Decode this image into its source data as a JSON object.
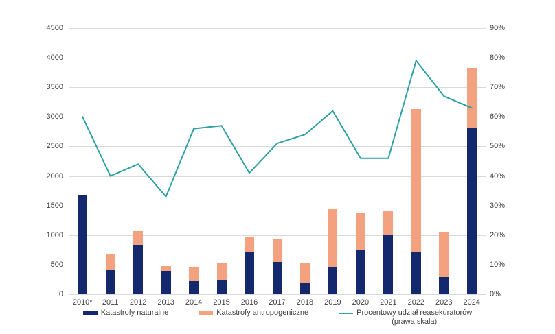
{
  "chart_data": {
    "type": "bar",
    "subtype": "stacked-bars-with-line",
    "categories": [
      "2010*",
      "2011",
      "2012",
      "2013",
      "2014",
      "2015",
      "2016",
      "2017",
      "2018",
      "2019",
      "2020",
      "2021",
      "2022",
      "2023",
      "2024"
    ],
    "series": [
      {
        "name": "Katastrofy naturalne",
        "type": "bar",
        "axis": "left",
        "color": "#14286e",
        "values": [
          1680,
          420,
          830,
          390,
          230,
          240,
          710,
          550,
          185,
          455,
          750,
          995,
          720,
          290,
          2820
        ]
      },
      {
        "name": "Katastrofy antropogeniczne",
        "type": "bar",
        "axis": "left",
        "color": "#f4a180",
        "values": [
          0,
          265,
          235,
          80,
          230,
          290,
          270,
          380,
          345,
          980,
          630,
          425,
          2410,
          750,
          1010
        ]
      },
      {
        "name": "Procentowy udział reasekuratorów (prawa skala)",
        "type": "line",
        "axis": "right",
        "color": "#2ca0a4",
        "values": [
          60,
          40,
          44,
          33,
          56,
          57,
          41,
          51,
          54,
          62,
          46,
          46,
          79,
          67,
          63
        ]
      }
    ],
    "title": "",
    "xlabel": "",
    "ylabel": "",
    "left_axis": {
      "min": 0,
      "max": 4500,
      "step": 500,
      "ticks": [
        "0",
        "500",
        "1000",
        "1500",
        "2000",
        "2500",
        "3000",
        "3500",
        "4000",
        "4500"
      ]
    },
    "right_axis": {
      "min": 0,
      "max": 90,
      "step": 10,
      "ticks": [
        "0%",
        "10%",
        "20%",
        "30%",
        "40%",
        "50%",
        "60%",
        "70%",
        "80%",
        "90%"
      ]
    },
    "grid": "horizontal",
    "legend_position": "bottom"
  },
  "legend": {
    "items": [
      {
        "label": "Katastrofy naturalne",
        "color": "#14286e",
        "swatch": "bar"
      },
      {
        "label": "Katastrofy antropogeniczne",
        "color": "#f4a180",
        "swatch": "bar"
      },
      {
        "label": "Procentowy udział reasekuratorów",
        "label2": "(prawa skala)",
        "color": "#2ca0a4",
        "swatch": "line"
      }
    ]
  },
  "colors": {
    "background": "#ffffff",
    "gridline": "#d9d9d9",
    "axis_text": "#404040"
  }
}
